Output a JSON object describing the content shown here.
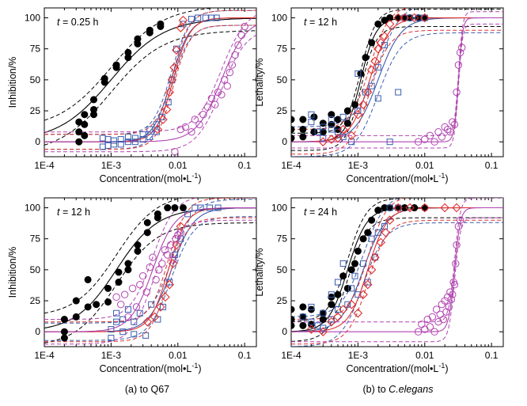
{
  "colors": {
    "black": "#000000",
    "blue": "#3a5dae",
    "red": "#e03030",
    "purple": "#b044b0"
  },
  "captions": [
    {
      "prefix": "(a) to ",
      "name": "Q67",
      "italic": false
    },
    {
      "prefix": "(b) to ",
      "name": "C.elegans",
      "italic": true
    }
  ],
  "chart_data": [
    {
      "id": "a-top",
      "type": "scatter",
      "time_label": {
        "var": "t",
        "text": "= 0.25 h"
      },
      "xlabel": "Concentration/(mol•L",
      "xlabel_sup": "-1",
      "xlabel_end": ")",
      "ylabel": "Inhibition/%",
      "xscale": "log",
      "xlim": [
        0.0001,
        0.15
      ],
      "ylim": [
        -12,
        108
      ],
      "xticks": [
        0.0001,
        0.001,
        0.01,
        0.1
      ],
      "xtick_labels": [
        "1E-4",
        "1E-3",
        "0.01",
        "0.1"
      ],
      "yticks": [
        0,
        25,
        50,
        75,
        100
      ],
      "series": [
        {
          "marker": "filled-circle",
          "color": "#000000",
          "x": [
            0.00033,
            0.00033,
            0.00033,
            0.0004,
            0.0004,
            0.0004,
            0.00055,
            0.00055,
            0.00055,
            0.0008,
            0.0008,
            0.0012,
            0.0012,
            0.0018,
            0.0018,
            0.0025,
            0.0025,
            0.0038,
            0.0038,
            0.0055,
            0.0055
          ],
          "y": [
            16,
            8,
            0,
            22,
            14,
            5,
            34,
            26,
            22,
            51,
            48,
            62,
            60,
            72,
            68,
            83,
            79,
            90,
            88,
            95,
            93
          ],
          "fit": {
            "ec50": 0.001,
            "slope": 1.1
          },
          "band": 10
        },
        {
          "marker": "open-square",
          "color": "#3a5dae",
          "x": [
            0.00075,
            0.00075,
            0.0009,
            0.0009,
            0.0011,
            0.0011,
            0.0014,
            0.0014,
            0.0018,
            0.0018,
            0.0023,
            0.0023,
            0.003,
            0.003,
            0.0038,
            0.0038,
            0.0048,
            0.0048,
            0.0058,
            0.0072,
            0.0082,
            0.0095,
            0.012,
            0.016,
            0.02,
            0.026,
            0.032,
            0.038
          ],
          "y": [
            3,
            -4,
            2,
            -3,
            1,
            -2,
            2,
            -2,
            4,
            0,
            3,
            0,
            6,
            2,
            10,
            4,
            14,
            8,
            20,
            32,
            50,
            75,
            95,
            99,
            100,
            100,
            100,
            100
          ],
          "fit": {
            "ec50": 0.008,
            "slope": 3.2
          },
          "band": 6
        },
        {
          "marker": "open-diamond",
          "color": "#e03030",
          "x": [
            0.005,
            0.006,
            0.0068,
            0.0075,
            0.0082,
            0.0088,
            0.0095,
            0.011,
            0.012
          ],
          "y": [
            10,
            18,
            26,
            40,
            50,
            60,
            74,
            92,
            98
          ],
          "fit": {
            "ec50": 0.0085,
            "slope": 3.4
          },
          "band": 6
        },
        {
          "marker": "open-circle",
          "color": "#b044b0",
          "x": [
            0.009,
            0.011,
            0.013,
            0.016,
            0.018,
            0.021,
            0.024,
            0.028,
            0.032,
            0.036,
            0.04,
            0.045,
            0.05,
            0.055,
            0.06,
            0.065,
            0.072,
            0.08,
            0.09,
            0.1
          ],
          "y": [
            -8,
            10,
            12,
            8,
            18,
            14,
            22,
            28,
            35,
            30,
            40,
            38,
            50,
            45,
            56,
            62,
            70,
            78,
            86,
            93
          ],
          "fit": {
            "ec50": 0.045,
            "slope": 2.3
          },
          "band": 8
        }
      ]
    },
    {
      "id": "b-top",
      "type": "scatter",
      "time_label": {
        "var": "t",
        "text": "= 12 h"
      },
      "xlabel": "Concentration/(mol•L",
      "xlabel_sup": "-1",
      "xlabel_end": ")",
      "ylabel": "Lethality/%",
      "xscale": "log",
      "xlim": [
        0.0001,
        0.15
      ],
      "ylim": [
        -12,
        108
      ],
      "xticks": [
        0.0001,
        0.001,
        0.01,
        0.1
      ],
      "xtick_labels": [
        "1E-4",
        "1E-3",
        "0.01",
        "0.1"
      ],
      "yticks": [
        0,
        25,
        50,
        75,
        100
      ],
      "series": [
        {
          "marker": "filled-circle",
          "color": "#000000",
          "x": [
            0.0001,
            0.0001,
            0.0001,
            0.00015,
            0.00015,
            0.00015,
            0.00022,
            0.00022,
            0.0003,
            0.0003,
            0.0004,
            0.0004,
            0.0005,
            0.0005,
            0.0007,
            0.0007,
            0.0009,
            0.0011,
            0.0013,
            0.0016,
            0.002,
            0.0025,
            0.003,
            0.004,
            0.005,
            0.006,
            0.008,
            0.01
          ],
          "y": [
            18,
            10,
            3,
            18,
            10,
            4,
            20,
            8,
            15,
            8,
            14,
            22,
            18,
            10,
            25,
            15,
            30,
            55,
            68,
            80,
            95,
            98,
            100,
            100,
            100,
            100,
            100,
            100
          ],
          "fit": {
            "ec50": 0.0011,
            "slope": 3.8
          },
          "band": 7
        },
        {
          "marker": "open-square",
          "color": "#3a5dae",
          "x": [
            0.0002,
            0.0002,
            0.00025,
            0.0003,
            0.0003,
            0.0004,
            0.0004,
            0.0005,
            0.0006,
            0.0006,
            0.0008,
            0.001,
            0.001,
            0.0013,
            0.0016,
            0.002,
            0.002,
            0.0025,
            0.003,
            0.004,
            0.005,
            0.006,
            0.008,
            0.01
          ],
          "y": [
            22,
            16,
            8,
            12,
            3,
            18,
            10,
            8,
            20,
            4,
            0,
            55,
            25,
            40,
            45,
            60,
            35,
            78,
            0,
            40,
            100,
            100,
            100,
            100
          ],
          "fit": {
            "ec50": 0.002,
            "slope": 2.5
          },
          "band": 12
        },
        {
          "marker": "open-diamond",
          "color": "#e03030",
          "x": [
            0.0003,
            0.0004,
            0.0005,
            0.0006,
            0.0008,
            0.001,
            0.0012,
            0.0014,
            0.0016,
            0.0018,
            0.002,
            0.0022,
            0.0025,
            0.003,
            0.004,
            0.005,
            0.007,
            0.01
          ],
          "y": [
            0,
            2,
            3,
            10,
            5,
            22,
            30,
            40,
            58,
            65,
            75,
            80,
            85,
            95,
            100,
            100,
            100,
            100
          ],
          "fit": {
            "ec50": 0.0015,
            "slope": 3.0
          },
          "band": 10
        },
        {
          "marker": "open-circle",
          "color": "#b044b0",
          "x": [
            0.008,
            0.01,
            0.012,
            0.014,
            0.016,
            0.018,
            0.02,
            0.022,
            0.024,
            0.026,
            0.028,
            0.03,
            0.032,
            0.034,
            0.036
          ],
          "y": [
            0,
            2,
            5,
            0,
            8,
            4,
            12,
            10,
            8,
            16,
            14,
            40,
            62,
            72,
            76
          ],
          "fit": {
            "ec50": 0.032,
            "slope": 14
          },
          "band": 5
        }
      ]
    },
    {
      "id": "a-bottom",
      "type": "scatter",
      "time_label": {
        "var": "t",
        "text": "= 12 h"
      },
      "xlabel": "Concentration/(mol•L",
      "xlabel_sup": "-1",
      "xlabel_end": ")",
      "ylabel": "Inhibition/%",
      "xscale": "log",
      "xlim": [
        0.0001,
        0.15
      ],
      "ylim": [
        -12,
        108
      ],
      "xticks": [
        0.0001,
        0.001,
        0.01,
        0.1
      ],
      "xtick_labels": [
        "1E-4",
        "1E-3",
        "0.01",
        "0.1"
      ],
      "yticks": [
        0,
        25,
        50,
        75,
        100
      ],
      "series": [
        {
          "marker": "filled-circle",
          "color": "#000000",
          "x": [
            0.0002,
            0.0002,
            0.0002,
            0.0003,
            0.0003,
            0.00045,
            0.00045,
            0.0006,
            0.0009,
            0.0009,
            0.0013,
            0.0013,
            0.0018,
            0.0018,
            0.0025,
            0.0025,
            0.0035,
            0.0035,
            0.005,
            0.005,
            0.007,
            0.009,
            0.012
          ],
          "y": [
            10,
            0,
            -5,
            25,
            12,
            42,
            20,
            22,
            35,
            24,
            48,
            40,
            55,
            50,
            70,
            65,
            88,
            80,
            95,
            92,
            100,
            100,
            100
          ],
          "fit": {
            "ec50": 0.0012,
            "slope": 1.4
          },
          "band": 12
        },
        {
          "marker": "open-square",
          "color": "#3a5dae",
          "x": [
            0.001,
            0.001,
            0.0012,
            0.0012,
            0.0015,
            0.0015,
            0.0018,
            0.0022,
            0.0022,
            0.0027,
            0.0033,
            0.004,
            0.005,
            0.006,
            0.0075,
            0.009,
            0.011,
            0.014,
            0.018,
            0.022,
            0.03,
            0.04
          ],
          "y": [
            2,
            -5,
            15,
            8,
            10,
            0,
            18,
            -2,
            8,
            15,
            -3,
            22,
            10,
            20,
            40,
            62,
            75,
            95,
            100,
            100,
            100,
            100
          ],
          "fit": {
            "ec50": 0.008,
            "slope": 2.6
          },
          "band": 7
        },
        {
          "marker": "open-diamond",
          "color": "#e03030",
          "x": [
            0.0035,
            0.0045,
            0.0055,
            0.0065,
            0.0075,
            0.0085,
            0.0095,
            0.011
          ],
          "y": [
            8,
            12,
            20,
            28,
            38,
            55,
            70,
            85
          ],
          "fit": {
            "ec50": 0.0072,
            "slope": 3.2
          },
          "band": 8
        },
        {
          "marker": "open-circle",
          "color": "#b044b0",
          "x": [
            0.0012,
            0.0014,
            0.0016,
            0.0018,
            0.0021,
            0.0024,
            0.0027,
            0.003,
            0.0034,
            0.0038,
            0.0042,
            0.0047,
            0.0052,
            0.0058,
            0.0064,
            0.007,
            0.0078,
            0.0085,
            0.0093,
            0.01,
            0.011
          ],
          "y": [
            28,
            22,
            30,
            12,
            35,
            20,
            38,
            45,
            32,
            52,
            60,
            42,
            50,
            55,
            66,
            62,
            70,
            58,
            75,
            78,
            80
          ],
          "fit": {
            "ec50": 0.0042,
            "slope": 2.6
          },
          "band": 10
        }
      ]
    },
    {
      "id": "b-bottom",
      "type": "scatter",
      "time_label": {
        "var": "t",
        "text": "= 24 h"
      },
      "xlabel": "Concentration/(mol•L",
      "xlabel_sup": "-1",
      "xlabel_end": ")",
      "ylabel": "Lethality/%",
      "xscale": "log",
      "xlim": [
        0.0001,
        0.15
      ],
      "ylim": [
        -12,
        108
      ],
      "xticks": [
        0.0001,
        0.001,
        0.01,
        0.1
      ],
      "xtick_labels": [
        "1E-4",
        "1E-3",
        "0.01",
        "0.1"
      ],
      "yticks": [
        0,
        25,
        50,
        75,
        100
      ],
      "series": [
        {
          "marker": "filled-circle",
          "color": "#000000",
          "x": [
            0.0001,
            0.0001,
            0.0001,
            0.00015,
            0.00015,
            0.00015,
            0.0002,
            0.0002,
            0.0003,
            0.0003,
            0.0004,
            0.0004,
            0.0005,
            0.0006,
            0.0007,
            0.0008,
            0.0009,
            0.001,
            0.0012,
            0.0014,
            0.0016,
            0.002,
            0.0025,
            0.003,
            0.004,
            0.005,
            0.007,
            0.01
          ],
          "y": [
            18,
            10,
            5,
            20,
            12,
            5,
            18,
            6,
            15,
            10,
            22,
            28,
            30,
            45,
            35,
            50,
            55,
            65,
            75,
            80,
            90,
            98,
            100,
            100,
            100,
            100,
            100,
            100
          ],
          "fit": {
            "ec50": 0.0007,
            "slope": 3.0
          },
          "band": 8
        },
        {
          "marker": "open-square",
          "color": "#3a5dae",
          "x": [
            0.00015,
            0.0002,
            0.0002,
            0.00025,
            0.0003,
            0.0003,
            0.0004,
            0.0004,
            0.0005,
            0.0005,
            0.0006,
            0.0007,
            0.0008,
            0.0009,
            0.001,
            0.0012,
            0.0014,
            0.0016,
            0.0018,
            0.002,
            0.0025,
            0.003,
            0.004
          ],
          "y": [
            12,
            20,
            8,
            5,
            15,
            3,
            30,
            10,
            18,
            40,
            55,
            22,
            35,
            45,
            30,
            55,
            40,
            75,
            60,
            80,
            85,
            100,
            100
          ],
          "fit": {
            "ec50": 0.0012,
            "slope": 2.6
          },
          "band": 12
        },
        {
          "marker": "open-diamond",
          "color": "#e03030",
          "x": [
            0.0002,
            0.0003,
            0.0004,
            0.0005,
            0.0006,
            0.0008,
            0.001,
            0.0012,
            0.0014,
            0.0016,
            0.0018,
            0.0022,
            0.0026,
            0.003,
            0.004,
            0.006,
            0.01,
            0.02,
            0.03
          ],
          "y": [
            2,
            0,
            8,
            12,
            18,
            22,
            15,
            30,
            38,
            50,
            60,
            72,
            80,
            90,
            100,
            100,
            100,
            100,
            100
          ],
          "fit": {
            "ec50": 0.0014,
            "slope": 3.0
          },
          "band": 10
        },
        {
          "marker": "open-circle",
          "color": "#b044b0",
          "x": [
            0.008,
            0.009,
            0.01,
            0.011,
            0.012,
            0.013,
            0.014,
            0.015,
            0.016,
            0.017,
            0.018,
            0.019,
            0.02,
            0.021,
            0.022,
            0.023,
            0.024,
            0.025,
            0.026,
            0.027,
            0.028,
            0.029,
            0.03,
            0.032,
            0.034
          ],
          "y": [
            0,
            6,
            2,
            10,
            4,
            12,
            0,
            18,
            8,
            14,
            22,
            10,
            25,
            16,
            28,
            20,
            32,
            26,
            30,
            40,
            38,
            55,
            70,
            85,
            90
          ],
          "fit": {
            "ec50": 0.028,
            "slope": 10
          },
          "band": 8
        }
      ]
    }
  ]
}
